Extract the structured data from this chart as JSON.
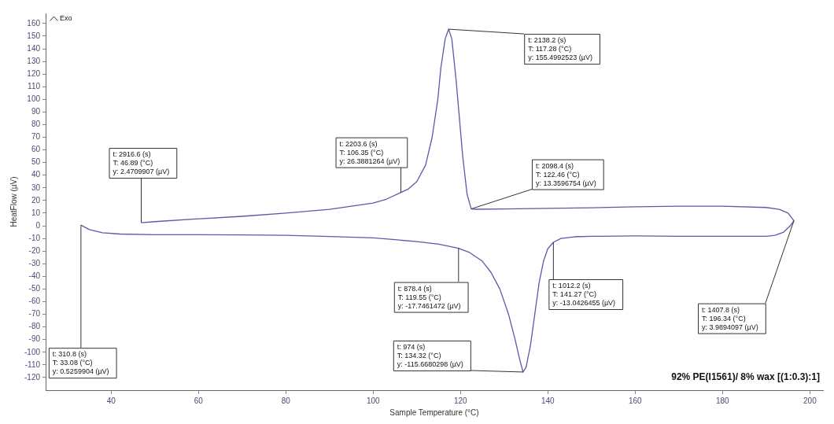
{
  "chart_data": {
    "type": "line",
    "xlabel": "Sample Temperature (°C)",
    "ylabel": "HeatFlow (µV)",
    "x": [
      33.08,
      35,
      38,
      42,
      50,
      60,
      70,
      80,
      90,
      100,
      105,
      110,
      115,
      119.55,
      122,
      125,
      127,
      129,
      131,
      132.5,
      133.5,
      134.32,
      135,
      136,
      137,
      138,
      139,
      140,
      141.27,
      143,
      146,
      150,
      160,
      170,
      180,
      190,
      192,
      194,
      195.5,
      196.34,
      195,
      193,
      190,
      180,
      170,
      160,
      150,
      140,
      130,
      123.5,
      122.46,
      121.5,
      120.5,
      119.5,
      119,
      118,
      117.28,
      116.5,
      115.5,
      114.8,
      113.5,
      112,
      110,
      108,
      106.35,
      103,
      100,
      90,
      80,
      70,
      60,
      50,
      46.89
    ],
    "values": [
      0.53,
      -3,
      -5.5,
      -6.5,
      -7,
      -7,
      -7.2,
      -7.5,
      -8.5,
      -9.6,
      -11,
      -12.5,
      -14.5,
      -17.75,
      -21,
      -28,
      -37,
      -50,
      -70,
      -90,
      -105,
      -115.67,
      -112,
      -95,
      -70,
      -45,
      -28,
      -18,
      -13.04,
      -10,
      -8.7,
      -8.3,
      -8,
      -8.3,
      -8.3,
      -8.3,
      -7.5,
      -5,
      0,
      3.99,
      10,
      13,
      14.5,
      15.5,
      15.5,
      15,
      14.3,
      13.8,
      13.3,
      13.1,
      13.36,
      25,
      55,
      95,
      115,
      148,
      155.5,
      148,
      125,
      100,
      70,
      48,
      35,
      29,
      26.39,
      21,
      18,
      13,
      10,
      7.5,
      5.5,
      3.3,
      2.47
    ],
    "color": "#5a5aa8",
    "marker": "none",
    "line_style": "solid",
    "grid": false,
    "legend": false,
    "xlim": [
      25,
      203
    ],
    "xticks": [
      40,
      60,
      80,
      100,
      120,
      140,
      160,
      180,
      200
    ],
    "ylim": [
      -130,
      168
    ],
    "yticks": [
      -120,
      -110,
      -100,
      -90,
      -80,
      -70,
      -60,
      -50,
      -40,
      -30,
      -20,
      -10,
      0,
      10,
      20,
      30,
      40,
      50,
      60,
      70,
      80,
      90,
      100,
      110,
      120,
      130,
      140,
      150,
      160
    ],
    "annotations": [
      "Exo",
      "92% PE(I1561)/ 8% wax [(1:0.3):1]",
      {
        "text": "t: 310.8 (s)\nT: 33.08 (°C)\ny: 0.5259904 (µV)",
        "x": 33.08,
        "y": 0.5259904
      },
      {
        "text": "t: 2916.6 (s)\nT: 46.89 (°C)\ny: 2.4709907 (µV)",
        "x": 46.89,
        "y": 2.4709907
      },
      {
        "text": "t: 2203.6 (s)\nT: 106.35 (°C)\ny: 26.3881264 (µV)",
        "x": 106.35,
        "y": 26.3881264
      },
      {
        "text": "t: 2138.2 (s)\nT: 117.28 (°C)\ny: 155.4992523 (µV)",
        "x": 117.28,
        "y": 155.4992523
      },
      {
        "text": "t: 2098.4 (s)\nT: 122.46 (°C)\ny: 13.3596754 (µV)",
        "x": 122.46,
        "y": 13.3596754
      },
      {
        "text": "t: 878.4 (s)\nT: 119.55 (°C)\ny: -17.7461472 (µV)",
        "x": 119.55,
        "y": -17.7461472
      },
      {
        "text": "t: 974 (s)\nT: 134.32 (°C)\ny: -115.6680298 (µV)",
        "x": 134.32,
        "y": -115.6680298
      },
      {
        "text": "t: 1012.2 (s)\nT: 141.27 (°C)\ny: -13.0426455 (µV)",
        "x": 141.27,
        "y": -13.0426455
      },
      {
        "text": "t: 1407.8 (s)\nT: 196.34 (°C)\ny: 3.9894097 (µV)",
        "x": 196.34,
        "y": 3.9894097
      }
    ]
  }
}
